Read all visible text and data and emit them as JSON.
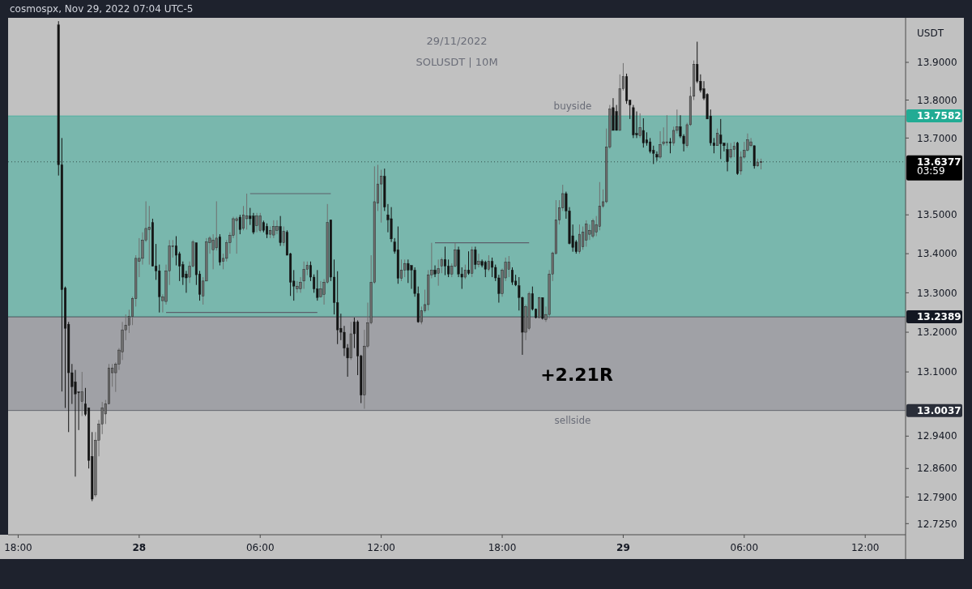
{
  "chart_data": {
    "type": "candlestick",
    "title": "29/11/2022",
    "subtitle": "SOLUSDT | 10M",
    "ylabel": "USDT",
    "log": true,
    "annotations": [
      "cosmospx, Nov 29, 2022 07:04 UTC-5",
      "+2.21R",
      "03:59"
    ],
    "xlim": [
      "2022-11-27T17:30",
      "2022-11-29T14:00"
    ],
    "xticks": [
      {
        "value": "2022-11-27T18:00",
        "label": "18:00"
      },
      {
        "value": "2022-11-28T00:00",
        "label": "28"
      },
      {
        "value": "2022-11-28T06:00",
        "label": "06:00"
      },
      {
        "value": "2022-11-28T12:00",
        "label": "12:00"
      },
      {
        "value": "2022-11-28T18:00",
        "label": "18:00"
      },
      {
        "value": "2022-11-29T00:00",
        "label": "29"
      },
      {
        "value": "2022-11-29T06:00",
        "label": "06:00"
      },
      {
        "value": "2022-11-29T12:00",
        "label": "12:00"
      }
    ],
    "ylim": [
      12.698,
      14.019
    ],
    "yticks": [
      {
        "value": 12.725,
        "label": "12.7250"
      },
      {
        "value": 12.79,
        "label": "12.7900"
      },
      {
        "value": 12.86,
        "label": "12.8600"
      },
      {
        "value": 12.94,
        "label": "12.9400"
      },
      {
        "value": 13.1,
        "label": "13.1000"
      },
      {
        "value": 13.2,
        "label": "13.2000"
      },
      {
        "value": 13.3,
        "label": "13.3000"
      },
      {
        "value": 13.4,
        "label": "13.4000"
      },
      {
        "value": 13.5,
        "label": "13.5000"
      },
      {
        "value": 13.7,
        "label": "13.7000"
      },
      {
        "value": 13.8,
        "label": "13.8000"
      },
      {
        "value": 13.9,
        "label": "13.9000"
      }
    ],
    "bands": [
      {
        "axis": "y",
        "from": 13.2389,
        "to": 13.7582,
        "label": "buyside",
        "color": "#22ab94"
      },
      {
        "axis": "y",
        "from": 13.0037,
        "to": 13.2389,
        "label": "sellside",
        "color": "#787b86"
      }
    ],
    "ref_lines": [
      {
        "axis": "y",
        "value": 13.7582,
        "label": "13.7582",
        "color": "#22ab94",
        "line_style": "solid"
      },
      {
        "axis": "y",
        "value": 13.2389,
        "label": "13.2389",
        "color": "#131722",
        "line_style": "solid"
      },
      {
        "axis": "y",
        "value": 13.0037,
        "label": "13.0037",
        "color": "#2a2e39",
        "line_style": "solid"
      },
      {
        "axis": "y",
        "value": 13.6377,
        "label": "13.6377",
        "color": "#000000",
        "line_style": "dotted"
      }
    ],
    "x": [
      "2022-11-27T20:00",
      "2022-11-27T20:10",
      "2022-11-27T20:20",
      "2022-11-27T20:30",
      "2022-11-27T20:40",
      "2022-11-27T20:50",
      "2022-11-27T21:00",
      "2022-11-27T21:10",
      "2022-11-27T21:20",
      "2022-11-27T21:30",
      "2022-11-27T21:40",
      "2022-11-27T21:50",
      "2022-11-27T22:00",
      "2022-11-27T22:10",
      "2022-11-27T22:20",
      "2022-11-27T22:30",
      "2022-11-27T22:40",
      "2022-11-27T22:50",
      "2022-11-27T23:00",
      "2022-11-27T23:10",
      "2022-11-27T23:20",
      "2022-11-27T23:30",
      "2022-11-27T23:40",
      "2022-11-27T23:50",
      "2022-11-28T00:00",
      "2022-11-28T00:10",
      "2022-11-28T00:20",
      "2022-11-28T00:30",
      "2022-11-28T00:40",
      "2022-11-28T00:50",
      "2022-11-28T01:00",
      "2022-11-28T01:10",
      "2022-11-28T01:20",
      "2022-11-28T01:30",
      "2022-11-28T01:40",
      "2022-11-28T01:50",
      "2022-11-28T02:00",
      "2022-11-28T02:10",
      "2022-11-28T02:20",
      "2022-11-28T02:30",
      "2022-11-28T02:40",
      "2022-11-28T02:50",
      "2022-11-28T03:00",
      "2022-11-28T03:10",
      "2022-11-28T03:20",
      "2022-11-28T03:30",
      "2022-11-28T03:40",
      "2022-11-28T03:50",
      "2022-11-28T04:00",
      "2022-11-28T04:10",
      "2022-11-28T04:20",
      "2022-11-28T04:30",
      "2022-11-28T04:40",
      "2022-11-28T04:50",
      "2022-11-28T05:00",
      "2022-11-28T05:10",
      "2022-11-28T05:20",
      "2022-11-28T05:30",
      "2022-11-28T05:40",
      "2022-11-28T05:50",
      "2022-11-28T06:00",
      "2022-11-28T06:10",
      "2022-11-28T06:20",
      "2022-11-28T06:30",
      "2022-11-28T06:40",
      "2022-11-28T06:50",
      "2022-11-28T07:00",
      "2022-11-28T07:10",
      "2022-11-28T07:20",
      "2022-11-28T07:30",
      "2022-11-28T07:40",
      "2022-11-28T07:50",
      "2022-11-28T08:00",
      "2022-11-28T08:10",
      "2022-11-28T08:20",
      "2022-11-28T08:30",
      "2022-11-28T08:40",
      "2022-11-28T08:50",
      "2022-11-28T09:00",
      "2022-11-28T09:10",
      "2022-11-28T09:20",
      "2022-11-28T09:30",
      "2022-11-28T09:40",
      "2022-11-28T09:50",
      "2022-11-28T10:00",
      "2022-11-28T10:10",
      "2022-11-28T10:20",
      "2022-11-28T10:30",
      "2022-11-28T10:40",
      "2022-11-28T10:50",
      "2022-11-28T11:00",
      "2022-11-28T11:10",
      "2022-11-28T11:20",
      "2022-11-28T11:30",
      "2022-11-28T11:40",
      "2022-11-28T11:50",
      "2022-11-28T12:00",
      "2022-11-28T12:10",
      "2022-11-28T12:20",
      "2022-11-28T12:30",
      "2022-11-28T12:40",
      "2022-11-28T12:50",
      "2022-11-28T13:00",
      "2022-11-28T13:10",
      "2022-11-28T13:20",
      "2022-11-28T13:30",
      "2022-11-28T13:40",
      "2022-11-28T13:50",
      "2022-11-28T14:00",
      "2022-11-28T14:10",
      "2022-11-28T14:20",
      "2022-11-28T14:30",
      "2022-11-28T14:40",
      "2022-11-28T14:50",
      "2022-11-28T15:00",
      "2022-11-28T15:10",
      "2022-11-28T15:20",
      "2022-11-28T15:30",
      "2022-11-28T15:40",
      "2022-11-28T15:50",
      "2022-11-28T16:00",
      "2022-11-28T16:10",
      "2022-11-28T16:20",
      "2022-11-28T16:30",
      "2022-11-28T16:40",
      "2022-11-28T16:50",
      "2022-11-28T17:00",
      "2022-11-28T17:10",
      "2022-11-28T17:20",
      "2022-11-28T17:30",
      "2022-11-28T17:40",
      "2022-11-28T17:50",
      "2022-11-28T18:00",
      "2022-11-28T18:10",
      "2022-11-28T18:20",
      "2022-11-28T18:30",
      "2022-11-28T18:40",
      "2022-11-28T18:50",
      "2022-11-28T19:00",
      "2022-11-28T19:10",
      "2022-11-28T19:20",
      "2022-11-28T19:30",
      "2022-11-28T19:40",
      "2022-11-28T19:50",
      "2022-11-28T20:00",
      "2022-11-28T20:10",
      "2022-11-28T20:20",
      "2022-11-28T20:30",
      "2022-11-28T20:40",
      "2022-11-28T20:50",
      "2022-11-28T21:00",
      "2022-11-28T21:10",
      "2022-11-28T21:20",
      "2022-11-28T21:30",
      "2022-11-28T21:40",
      "2022-11-28T21:50",
      "2022-11-28T22:00",
      "2022-11-28T22:10",
      "2022-11-28T22:20",
      "2022-11-28T22:30",
      "2022-11-28T22:40",
      "2022-11-28T22:50",
      "2022-11-28T23:00",
      "2022-11-28T23:10",
      "2022-11-28T23:20",
      "2022-11-28T23:30",
      "2022-11-28T23:40",
      "2022-11-28T23:50",
      "2022-11-29T00:00",
      "2022-11-29T00:10",
      "2022-11-29T00:20",
      "2022-11-29T00:30",
      "2022-11-29T00:40",
      "2022-11-29T00:50",
      "2022-11-29T01:00",
      "2022-11-29T01:10",
      "2022-11-29T01:20",
      "2022-11-29T01:30",
      "2022-11-29T01:40",
      "2022-11-29T01:50",
      "2022-11-29T02:00",
      "2022-11-29T02:10",
      "2022-11-29T02:20",
      "2022-11-29T02:30",
      "2022-11-29T02:40",
      "2022-11-29T02:50",
      "2022-11-29T03:00",
      "2022-11-29T03:10",
      "2022-11-29T03:20",
      "2022-11-29T03:30",
      "2022-11-29T03:40",
      "2022-11-29T03:50",
      "2022-11-29T04:00",
      "2022-11-29T04:10",
      "2022-11-29T04:20",
      "2022-11-29T04:30",
      "2022-11-29T04:40",
      "2022-11-29T04:50",
      "2022-11-29T05:00",
      "2022-11-29T05:10",
      "2022-11-29T05:20",
      "2022-11-29T05:30",
      "2022-11-29T05:40",
      "2022-11-29T05:50",
      "2022-11-29T06:00",
      "2022-11-29T06:10",
      "2022-11-29T06:20",
      "2022-11-29T06:30",
      "2022-11-29T06:40",
      "2022-11-29T06:50"
    ],
    "ohlc": [
      [
        14.0,
        14.01,
        13.602,
        13.63
      ],
      [
        13.63,
        13.7,
        13.051,
        13.308
      ],
      [
        13.312,
        13.316,
        13.01,
        13.21
      ],
      [
        13.22,
        13.226,
        12.95,
        13.098
      ],
      [
        13.098,
        13.12,
        13.02,
        13.063
      ],
      [
        13.075,
        13.105,
        12.84,
        13.045
      ],
      [
        13.05,
        13.05,
        12.955,
        13.048
      ],
      [
        13.026,
        13.1,
        12.99,
        13.05
      ],
      [
        13.02,
        13.06,
        12.99,
        12.994
      ],
      [
        13.01,
        13.01,
        12.86,
        12.88
      ],
      [
        12.89,
        12.95,
        12.78,
        12.785
      ],
      [
        12.795,
        12.95,
        12.79,
        12.93
      ],
      [
        12.93,
        12.98,
        12.89,
        12.97
      ],
      [
        12.97,
        13.025,
        12.945,
        13.01
      ],
      [
        12.995,
        13.03,
        12.97,
        13.02
      ],
      [
        13.02,
        13.12,
        13.02,
        13.11
      ],
      [
        13.098,
        13.12,
        13.063,
        13.11
      ],
      [
        13.098,
        13.124,
        13.05,
        13.12
      ],
      [
        13.12,
        13.16,
        13.105,
        13.155
      ],
      [
        13.15,
        13.226,
        13.13,
        13.206
      ],
      [
        13.206,
        13.245,
        13.18,
        13.218
      ],
      [
        13.218,
        13.257,
        13.198,
        13.24
      ],
      [
        13.24,
        13.29,
        13.218,
        13.285
      ],
      [
        13.285,
        13.396,
        13.265,
        13.388
      ],
      [
        13.38,
        13.44,
        13.34,
        13.388
      ],
      [
        13.388,
        13.455,
        13.372,
        13.435
      ],
      [
        13.435,
        13.535,
        13.43,
        13.465
      ],
      [
        13.462,
        13.523,
        13.372,
        13.468
      ],
      [
        13.48,
        13.49,
        13.368,
        13.368
      ],
      [
        13.368,
        13.425,
        13.333,
        13.356
      ],
      [
        13.356,
        13.372,
        13.25,
        13.29
      ],
      [
        13.28,
        13.296,
        13.25,
        13.29
      ],
      [
        13.278,
        13.372,
        13.27,
        13.356
      ],
      [
        13.356,
        13.435,
        13.32,
        13.42
      ],
      [
        13.418,
        13.435,
        13.39,
        13.42
      ],
      [
        13.42,
        13.445,
        13.37,
        13.396
      ],
      [
        13.4,
        13.405,
        13.33,
        13.368
      ],
      [
        13.372,
        13.38,
        13.32,
        13.34
      ],
      [
        13.348,
        13.356,
        13.3,
        13.338
      ],
      [
        13.34,
        13.38,
        13.325,
        13.368
      ],
      [
        13.368,
        13.435,
        13.365,
        13.43
      ],
      [
        13.428,
        13.428,
        13.32,
        13.346
      ],
      [
        13.348,
        13.356,
        13.28,
        13.296
      ],
      [
        13.292,
        13.34,
        13.27,
        13.33
      ],
      [
        13.33,
        13.44,
        13.33,
        13.43
      ],
      [
        13.428,
        13.445,
        13.4,
        13.44
      ],
      [
        13.41,
        13.45,
        13.36,
        13.435
      ],
      [
        13.415,
        13.535,
        13.408,
        13.44
      ],
      [
        13.443,
        13.45,
        13.37,
        13.378
      ],
      [
        13.38,
        13.4,
        13.36,
        13.388
      ],
      [
        13.388,
        13.435,
        13.38,
        13.428
      ],
      [
        13.428,
        13.455,
        13.4,
        13.447
      ],
      [
        13.447,
        13.495,
        13.44,
        13.49
      ],
      [
        13.485,
        13.495,
        13.4,
        13.49
      ],
      [
        13.494,
        13.5,
        13.45,
        13.462
      ],
      [
        13.465,
        13.523,
        13.46,
        13.5
      ],
      [
        13.49,
        13.555,
        13.462,
        13.498
      ],
      [
        13.497,
        13.518,
        13.474,
        13.49
      ],
      [
        13.497,
        13.505,
        13.45,
        13.455
      ],
      [
        13.472,
        13.505,
        13.455,
        13.497
      ],
      [
        13.46,
        13.505,
        13.455,
        13.497
      ],
      [
        13.48,
        13.485,
        13.455,
        13.46
      ],
      [
        13.47,
        13.478,
        13.44,
        13.45
      ],
      [
        13.45,
        13.47,
        13.44,
        13.46
      ],
      [
        13.448,
        13.486,
        13.44,
        13.47
      ],
      [
        13.46,
        13.486,
        13.45,
        13.47
      ],
      [
        13.47,
        13.497,
        13.42,
        13.428
      ],
      [
        13.428,
        13.47,
        13.42,
        13.457
      ],
      [
        13.455,
        13.46,
        13.396,
        13.396
      ],
      [
        13.4,
        13.402,
        13.292,
        13.327
      ],
      [
        13.33,
        13.358,
        13.28,
        13.317
      ],
      [
        13.31,
        13.33,
        13.3,
        13.317
      ],
      [
        13.31,
        13.34,
        13.3,
        13.327
      ],
      [
        13.33,
        13.38,
        13.31,
        13.36
      ],
      [
        13.36,
        13.38,
        13.345,
        13.37
      ],
      [
        13.37,
        13.38,
        13.33,
        13.34
      ],
      [
        13.34,
        13.347,
        13.3,
        13.31
      ],
      [
        13.31,
        13.358,
        13.28,
        13.288
      ],
      [
        13.29,
        13.33,
        13.288,
        13.31
      ],
      [
        13.296,
        13.335,
        13.27,
        13.327
      ],
      [
        13.327,
        13.528,
        13.323,
        13.48
      ],
      [
        13.487,
        13.487,
        13.33,
        13.34
      ],
      [
        13.34,
        13.385,
        13.245,
        13.275
      ],
      [
        13.275,
        13.355,
        13.17,
        13.206
      ],
      [
        13.21,
        13.247,
        13.18,
        13.2
      ],
      [
        13.2,
        13.216,
        13.14,
        13.16
      ],
      [
        13.16,
        13.17,
        13.088,
        13.135
      ],
      [
        13.135,
        13.226,
        13.13,
        13.196
      ],
      [
        13.226,
        13.237,
        13.16,
        13.196
      ],
      [
        13.226,
        13.23,
        13.092,
        13.14
      ],
      [
        13.14,
        13.143,
        13.022,
        13.042
      ],
      [
        13.042,
        13.206,
        13.008,
        13.165
      ],
      [
        13.165,
        13.275,
        13.16,
        13.224
      ],
      [
        13.224,
        13.396,
        13.22,
        13.327
      ],
      [
        13.327,
        13.626,
        13.323,
        13.534
      ],
      [
        13.53,
        13.63,
        13.51,
        13.58
      ],
      [
        13.58,
        13.617,
        13.48,
        13.6
      ],
      [
        13.6,
        13.62,
        13.51,
        13.52
      ],
      [
        13.5,
        13.528,
        13.455,
        13.487
      ],
      [
        13.49,
        13.52,
        13.43,
        13.438
      ],
      [
        13.43,
        13.44,
        13.4,
        13.406
      ],
      [
        13.41,
        13.47,
        13.323,
        13.337
      ],
      [
        13.337,
        13.385,
        13.33,
        13.358
      ],
      [
        13.358,
        13.385,
        13.34,
        13.375
      ],
      [
        13.375,
        13.385,
        13.325,
        13.358
      ],
      [
        13.37,
        13.37,
        13.31,
        13.358
      ],
      [
        13.358,
        13.365,
        13.29,
        13.298
      ],
      [
        13.298,
        13.316,
        13.224,
        13.226
      ],
      [
        13.226,
        13.265,
        13.22,
        13.255
      ],
      [
        13.255,
        13.308,
        13.25,
        13.27
      ],
      [
        13.27,
        13.358,
        13.255,
        13.346
      ],
      [
        13.346,
        13.428,
        13.337,
        13.358
      ],
      [
        13.358,
        13.37,
        13.34,
        13.348
      ],
      [
        13.35,
        13.385,
        13.318,
        13.362
      ],
      [
        13.368,
        13.39,
        13.35,
        13.385
      ],
      [
        13.385,
        13.418,
        13.345,
        13.368
      ],
      [
        13.368,
        13.385,
        13.34,
        13.348
      ],
      [
        13.348,
        13.375,
        13.34,
        13.368
      ],
      [
        13.368,
        13.428,
        13.365,
        13.41
      ],
      [
        13.41,
        13.418,
        13.34,
        13.348
      ],
      [
        13.348,
        13.365,
        13.31,
        13.34
      ],
      [
        13.34,
        13.372,
        13.335,
        13.358
      ],
      [
        13.358,
        13.406,
        13.346,
        13.35
      ],
      [
        13.35,
        13.418,
        13.34,
        13.41
      ],
      [
        13.41,
        13.418,
        13.36,
        13.372
      ],
      [
        13.372,
        13.4,
        13.365,
        13.38
      ],
      [
        13.38,
        13.385,
        13.365,
        13.37
      ],
      [
        13.378,
        13.382,
        13.34,
        13.36
      ],
      [
        13.36,
        13.396,
        13.355,
        13.38
      ],
      [
        13.38,
        13.39,
        13.34,
        13.365
      ],
      [
        13.365,
        13.372,
        13.33,
        13.338
      ],
      [
        13.338,
        13.346,
        13.275,
        13.298
      ],
      [
        13.298,
        13.362,
        13.29,
        13.358
      ],
      [
        13.338,
        13.39,
        13.33,
        13.378
      ],
      [
        13.36,
        13.394,
        13.34,
        13.378
      ],
      [
        13.358,
        13.365,
        13.32,
        13.327
      ],
      [
        13.33,
        13.346,
        13.317,
        13.32
      ],
      [
        13.318,
        13.34,
        13.255,
        13.288
      ],
      [
        13.288,
        13.29,
        13.143,
        13.2
      ],
      [
        13.2,
        13.27,
        13.18,
        13.265
      ],
      [
        13.21,
        13.303,
        13.205,
        13.298
      ],
      [
        13.298,
        13.316,
        13.255,
        13.258
      ],
      [
        13.258,
        13.26,
        13.235,
        13.237
      ],
      [
        13.237,
        13.29,
        13.235,
        13.288
      ],
      [
        13.288,
        13.288,
        13.232,
        13.235
      ],
      [
        13.232,
        13.265,
        13.226,
        13.245
      ],
      [
        13.245,
        13.358,
        13.235,
        13.348
      ],
      [
        13.348,
        13.405,
        13.33,
        13.402
      ],
      [
        13.4,
        13.538,
        13.4,
        13.487
      ],
      [
        13.487,
        13.538,
        13.475,
        13.518
      ],
      [
        13.518,
        13.578,
        13.51,
        13.555
      ],
      [
        13.555,
        13.56,
        13.49,
        13.51
      ],
      [
        13.51,
        13.52,
        13.424,
        13.426
      ],
      [
        13.446,
        13.475,
        13.405,
        13.416
      ],
      [
        13.43,
        13.435,
        13.4,
        13.405
      ],
      [
        13.405,
        13.475,
        13.4,
        13.45
      ],
      [
        13.418,
        13.47,
        13.41,
        13.455
      ],
      [
        13.435,
        13.486,
        13.418,
        13.476
      ],
      [
        13.45,
        13.475,
        13.435,
        13.46
      ],
      [
        13.445,
        13.49,
        13.44,
        13.485
      ],
      [
        13.455,
        13.497,
        13.445,
        13.475
      ],
      [
        13.47,
        13.585,
        13.46,
        13.523
      ],
      [
        13.523,
        13.566,
        13.518,
        13.534
      ],
      [
        13.534,
        13.725,
        13.53,
        13.676
      ],
      [
        13.676,
        13.787,
        13.672,
        13.776
      ],
      [
        13.78,
        13.805,
        13.72,
        13.72
      ],
      [
        13.77,
        13.787,
        13.72,
        13.72
      ],
      [
        13.72,
        13.868,
        13.72,
        13.83
      ],
      [
        13.83,
        13.898,
        13.825,
        13.862
      ],
      [
        13.862,
        13.87,
        13.79,
        13.798
      ],
      [
        13.8,
        13.8,
        13.75,
        13.787
      ],
      [
        13.78,
        13.787,
        13.7,
        13.708
      ],
      [
        13.712,
        13.77,
        13.7,
        13.708
      ],
      [
        13.706,
        13.765,
        13.7,
        13.728
      ],
      [
        13.72,
        13.752,
        13.675,
        13.687
      ],
      [
        13.695,
        13.715,
        13.68,
        13.687
      ],
      [
        13.69,
        13.7,
        13.66,
        13.665
      ],
      [
        13.668,
        13.68,
        13.632,
        13.66
      ],
      [
        13.657,
        13.665,
        13.64,
        13.65
      ],
      [
        13.65,
        13.718,
        13.646,
        13.683
      ],
      [
        13.685,
        13.728,
        13.68,
        13.69
      ],
      [
        13.688,
        13.76,
        13.68,
        13.69
      ],
      [
        13.69,
        13.7,
        13.66,
        13.687
      ],
      [
        13.687,
        13.73,
        13.68,
        13.72
      ],
      [
        13.72,
        13.775,
        13.712,
        13.73
      ],
      [
        13.73,
        13.76,
        13.7,
        13.705
      ],
      [
        13.705,
        13.71,
        13.665,
        13.685
      ],
      [
        13.68,
        13.74,
        13.675,
        13.735
      ],
      [
        13.735,
        13.835,
        13.732,
        13.81
      ],
      [
        13.81,
        13.905,
        13.8,
        13.895
      ],
      [
        13.895,
        13.955,
        13.845,
        13.85
      ],
      [
        13.85,
        13.868,
        13.82,
        13.826
      ],
      [
        13.83,
        13.85,
        13.8,
        13.805
      ],
      [
        13.815,
        13.818,
        13.75,
        13.75
      ],
      [
        13.758,
        13.775,
        13.68,
        13.687
      ],
      [
        13.687,
        13.7,
        13.66,
        13.68
      ],
      [
        13.68,
        13.725,
        13.68,
        13.712
      ],
      [
        13.708,
        13.75,
        13.645,
        13.685
      ],
      [
        13.687,
        13.687,
        13.665,
        13.68
      ],
      [
        13.67,
        13.687,
        13.613,
        13.638
      ],
      [
        13.65,
        13.687,
        13.646,
        13.67
      ],
      [
        13.67,
        13.69,
        13.65,
        13.678
      ],
      [
        13.687,
        13.69,
        13.604,
        13.607
      ],
      [
        13.614,
        13.665,
        13.604,
        13.65
      ],
      [
        13.65,
        13.69,
        13.646,
        13.668
      ],
      [
        13.668,
        13.712,
        13.665,
        13.695
      ],
      [
        13.68,
        13.7,
        13.676,
        13.69
      ],
      [
        13.68,
        13.68,
        13.62,
        13.627
      ],
      [
        13.627,
        13.646,
        13.625,
        13.637
      ],
      [
        13.637,
        13.646,
        13.618,
        13.6377
      ]
    ],
    "series": [
      {
        "type": "line",
        "color": "#5d606b",
        "x": [
          "2022-11-28T05:30",
          "2022-11-28T09:30"
        ],
        "values": [
          13.555,
          13.555
        ]
      },
      {
        "type": "line",
        "color": "#5d606b",
        "x": [
          "2022-11-28T01:20",
          "2022-11-28T08:50"
        ],
        "values": [
          13.25,
          13.25
        ]
      },
      {
        "type": "line",
        "color": "#5d606b",
        "x": [
          "2022-11-28T14:40",
          "2022-11-28T19:20"
        ],
        "values": [
          13.428,
          13.428
        ]
      }
    ]
  }
}
